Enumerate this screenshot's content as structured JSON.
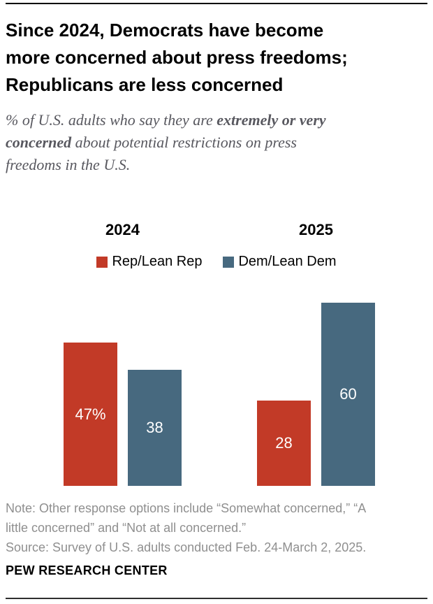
{
  "page": {
    "title_lines": [
      "Since 2024, Democrats have become",
      "more concerned about press freedoms;",
      "Republicans are less concerned"
    ],
    "subtitle": {
      "lines": [
        {
          "normal": "% of U.S. adults who say they are ",
          "bold": "extremely or very"
        },
        {
          "bold": "concerned",
          "normal": " about potential restrictions on press"
        },
        {
          "normal": "freedoms in the U.S."
        }
      ]
    },
    "note_lines": [
      "Note: Other response options include “Somewhat concerned,” “A",
      "little concerned” and “Not at all concerned.”"
    ],
    "source": "Source: Survey of U.S. adults conducted Feb. 24-March 2, 2025.",
    "brand": "PEW RESEARCH CENTER"
  },
  "legend": {
    "items": [
      {
        "label": "Rep/Lean Rep",
        "color": "#c23a27"
      },
      {
        "label": "Dem/Lean Dem",
        "color": "#47697f"
      }
    ]
  },
  "chart_data": {
    "type": "bar",
    "title": "Since 2024, Democrats have become more concerned about press freedoms; Republicans are less concerned",
    "subtitle": "% of U.S. adults who say they are extremely or very concerned about potential restrictions on press freedoms in the U.S.",
    "categories": [
      "2024",
      "2025"
    ],
    "series": [
      {
        "name": "Rep/Lean Rep",
        "color": "#c23a27",
        "values": [
          47,
          28
        ],
        "value_labels": [
          "47%",
          "28"
        ]
      },
      {
        "name": "Dem/Lean Dem",
        "color": "#47697f",
        "values": [
          38,
          60
        ],
        "value_labels": [
          "38",
          "60"
        ]
      }
    ],
    "unit": "percent",
    "ylim": [
      0,
      62
    ],
    "grid": false,
    "axes_shown": false,
    "legend_position": "top",
    "value_label_color": "#ffffff"
  }
}
